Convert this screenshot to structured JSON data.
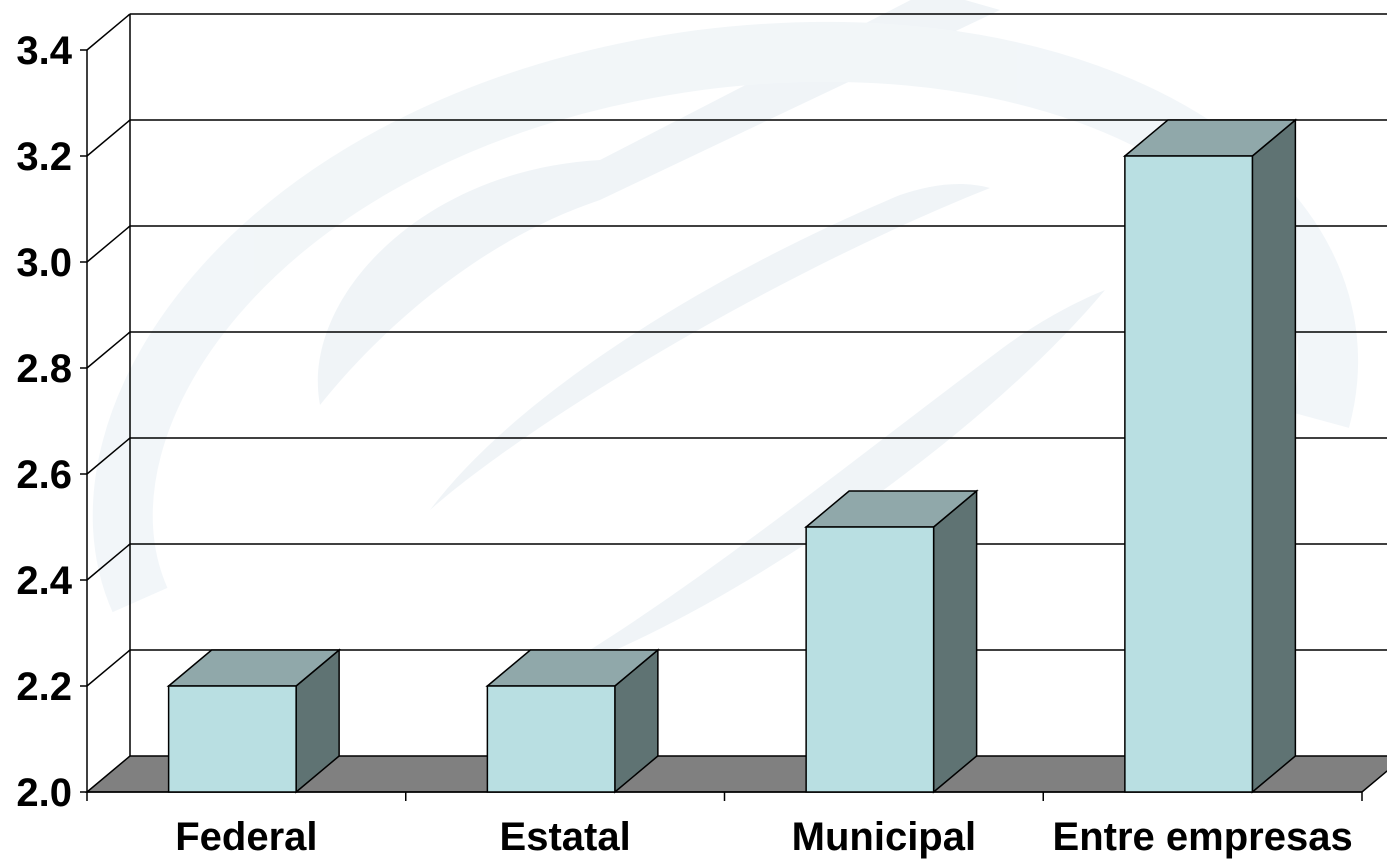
{
  "chart_data": {
    "type": "bar",
    "style": "3d-column",
    "categories": [
      "Federal",
      "Estatal",
      "Municipal",
      "Entre empresas"
    ],
    "values": [
      2.2,
      2.2,
      2.5,
      3.2
    ],
    "ylim": [
      2.0,
      3.4
    ],
    "yticks": [
      "2.0",
      "2.2",
      "2.4",
      "2.6",
      "2.8",
      "3.0",
      "3.2",
      "3.4"
    ],
    "grid": true,
    "title": "",
    "xlabel": "",
    "ylabel": ""
  },
  "colors": {
    "bar_front": "#b9dfe2",
    "bar_top": "#90a8aa",
    "bar_side": "#5f7373",
    "floor": "#808080",
    "watermark": "#dfe9f0"
  }
}
